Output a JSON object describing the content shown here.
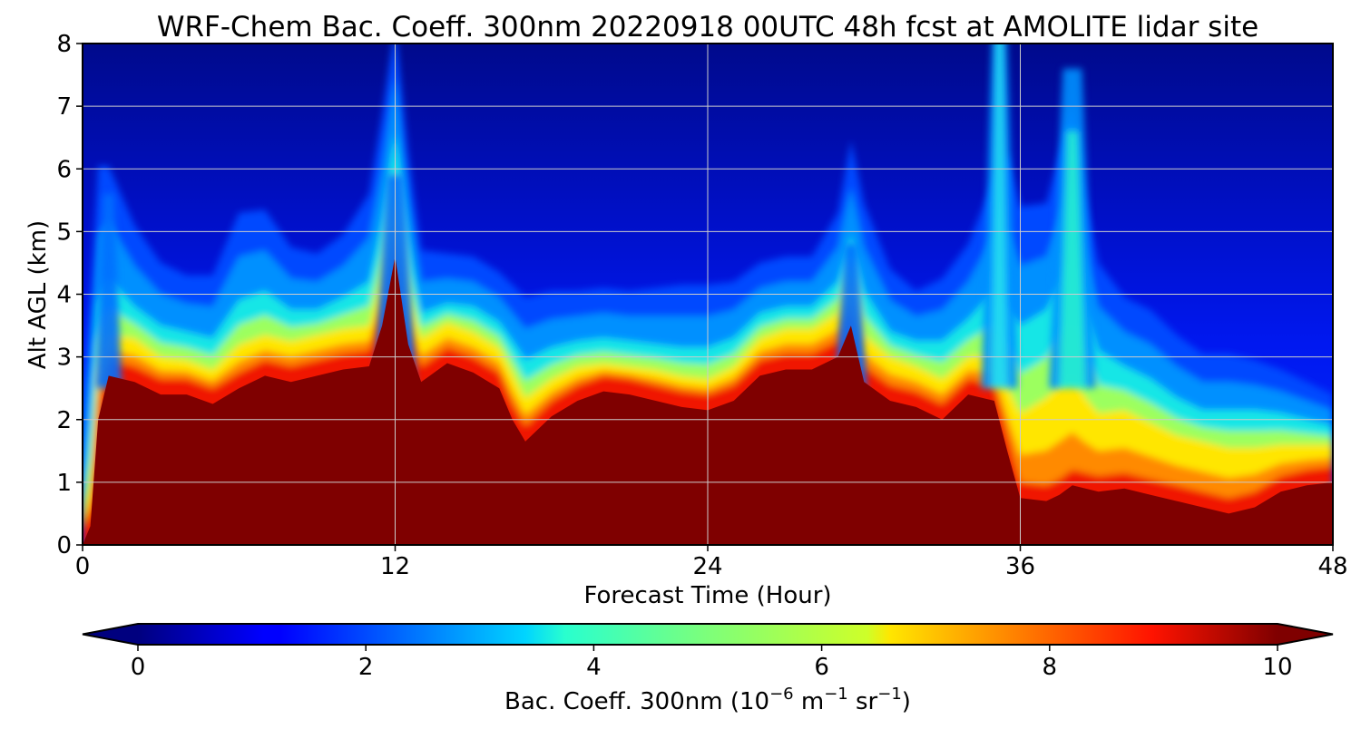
{
  "chart_data": {
    "type": "heatmap",
    "title": "WRF-Chem Bac. Coeff. 300nm  20220918 00UTC 48h fcst at AMOLITE lidar site",
    "xlabel": "Forecast Time (Hour)",
    "ylabel": "Alt AGL (km)",
    "xlim": [
      0,
      48
    ],
    "ylim": [
      0,
      8
    ],
    "xticks": [
      0,
      12,
      24,
      36,
      48
    ],
    "yticks": [
      0,
      1,
      2,
      3,
      4,
      5,
      6,
      7,
      8
    ],
    "grid": true,
    "colormap": "jet",
    "colorbar": {
      "label_main": "Bac. Coeff. 300nm  (10",
      "label_exp1": "−6",
      "label_mid": " m",
      "label_exp2": "−1",
      "label_mid2": " sr",
      "label_exp3": "−1",
      "label_end": ")",
      "vmin": 0,
      "vmax": 10,
      "ticks": [
        0,
        2,
        4,
        6,
        8,
        10
      ],
      "extend": "both",
      "orientation": "horizontal"
    },
    "x_hours": [
      0,
      0.3,
      0.6,
      1,
      2,
      3,
      4,
      5,
      6,
      7,
      8,
      9,
      10,
      11,
      11.5,
      12,
      12.5,
      13,
      14,
      15,
      16,
      16.5,
      17,
      18,
      19,
      20,
      21,
      22,
      23,
      24,
      25,
      26,
      27,
      28,
      29,
      29.5,
      30,
      31,
      32,
      33,
      34,
      35,
      35.5,
      36,
      37,
      37.5,
      38,
      38.5,
      39,
      40,
      41,
      42,
      43,
      44,
      45,
      46,
      47,
      48
    ],
    "dense_top_km": [
      0,
      0.3,
      2.0,
      2.7,
      2.6,
      2.4,
      2.4,
      2.25,
      2.5,
      2.7,
      2.6,
      2.7,
      2.8,
      2.85,
      3.5,
      4.6,
      3.2,
      2.6,
      2.9,
      2.75,
      2.5,
      2.0,
      1.65,
      2.05,
      2.3,
      2.45,
      2.4,
      2.3,
      2.2,
      2.15,
      2.3,
      2.7,
      2.8,
      2.8,
      3.0,
      3.5,
      2.6,
      2.3,
      2.2,
      2.0,
      2.4,
      2.3,
      1.5,
      0.75,
      0.7,
      0.8,
      0.95,
      0.9,
      0.85,
      0.9,
      0.8,
      0.7,
      0.6,
      0.5,
      0.6,
      0.85,
      0.95,
      1.0
    ],
    "yellow_band_km": [
      0.2,
      0.4,
      0.5,
      0.4,
      0.45,
      0.35,
      0.3,
      0.3,
      0.45,
      0.4,
      0.4,
      0.4,
      0.4,
      0.4,
      0.5,
      0.6,
      0.5,
      0.45,
      0.4,
      0.4,
      0.4,
      0.5,
      0.45,
      0.35,
      0.3,
      0.2,
      0.2,
      0.25,
      0.25,
      0.25,
      0.3,
      0.35,
      0.4,
      0.4,
      0.45,
      0.5,
      0.5,
      0.45,
      0.4,
      0.4,
      0.35,
      0.5,
      0.8,
      1.1,
      1.4,
      1.5,
      1.5,
      1.2,
      1.0,
      1.0,
      0.9,
      0.8,
      0.8,
      0.8,
      0.7,
      0.5,
      0.4,
      0.35
    ],
    "cyan_band_km": [
      0.6,
      1.0,
      1.1,
      0.9,
      0.5,
      0.5,
      0.45,
      0.5,
      0.7,
      0.7,
      0.5,
      0.4,
      0.5,
      0.7,
      0.9,
      1.1,
      0.9,
      0.4,
      0.3,
      0.4,
      0.4,
      0.5,
      0.6,
      0.5,
      0.4,
      0.4,
      0.4,
      0.4,
      0.45,
      0.5,
      0.45,
      0.4,
      0.35,
      0.35,
      0.5,
      0.7,
      0.7,
      0.4,
      0.4,
      0.6,
      0.6,
      1.0,
      1.2,
      1.4,
      1.4,
      1.6,
      1.9,
      1.4,
      1.0,
      0.7,
      0.7,
      0.6,
      0.5,
      0.6,
      0.6,
      0.5,
      0.4,
      0.3
    ],
    "blue_band_km": [
      1.5,
      2.0,
      2.2,
      1.8,
      1.3,
      1.0,
      0.9,
      1.0,
      1.4,
      1.3,
      1.0,
      0.9,
      1.0,
      1.4,
      1.7,
      1.8,
      1.4,
      1.0,
      0.8,
      0.8,
      0.8,
      0.9,
      1.0,
      0.9,
      0.8,
      0.8,
      0.8,
      0.9,
      1.0,
      1.0,
      0.9,
      0.8,
      0.8,
      0.8,
      1.1,
      1.5,
      1.4,
      1.0,
      0.8,
      1.0,
      1.2,
      1.8,
      2.5,
      1.9,
      1.7,
      2.1,
      2.4,
      1.8,
      1.4,
      1.1,
      1.1,
      1.0,
      0.9,
      0.9,
      0.8,
      0.7,
      0.6,
      0.5
    ]
  }
}
